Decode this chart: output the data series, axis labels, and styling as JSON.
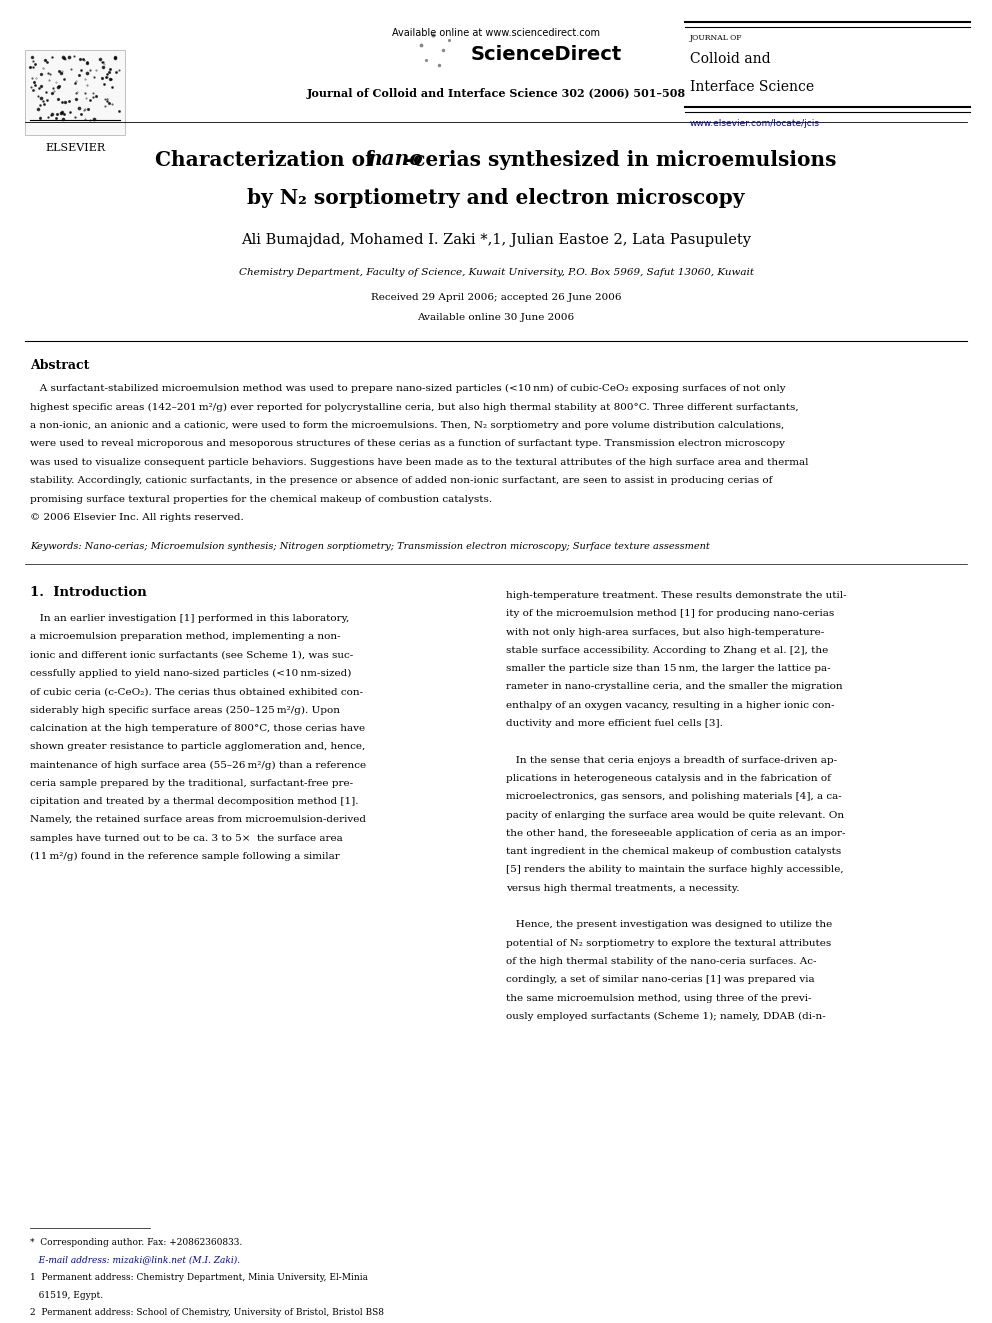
{
  "page_width": 9.92,
  "page_height": 13.23,
  "background_color": "#ffffff",
  "header": {
    "available_online": "Available online at www.sciencedirect.com",
    "sciencedirect": "ScienceDirect",
    "journal_line": "Journal of Colloid and Interface Science 302 (2006) 501–508",
    "journal_name_small": "JOURNAL OF",
    "journal_name_line1": "Colloid and",
    "journal_name_line2": "Interface Science",
    "website": "www.elsevier.com/locate/jcis"
  },
  "title_line1_pre": "Characterization of ",
  "title_line1_italic": "nano",
  "title_line1_post": "-cerias synthesized in microemulsions",
  "title_line2_pre": "by N",
  "title_line2_sub": "2",
  "title_line2_post": " sorptiometry and electron microscopy",
  "authors": "Ali Bumajdad, Mohamed I. Zaki *,1, Julian Eastoe 2, Lata Pasupulety",
  "affiliation": "Chemistry Department, Faculty of Science, Kuwait University, P.O. Box 5969, Safut 13060, Kuwait",
  "received": "Received 29 April 2006; accepted 26 June 2006",
  "available_online_date": "Available online 30 June 2006",
  "abstract_title": "Abstract",
  "keywords": "Keywords: Nano-cerias; Microemulsion synthesis; Nitrogen sorptiometry; Transmission electron microscopy; Surface texture assessment",
  "section1_title": "1.  Introduction",
  "colors": {
    "black": "#000000",
    "blue_link": "#0000bb",
    "dark_blue": "#00008B"
  }
}
